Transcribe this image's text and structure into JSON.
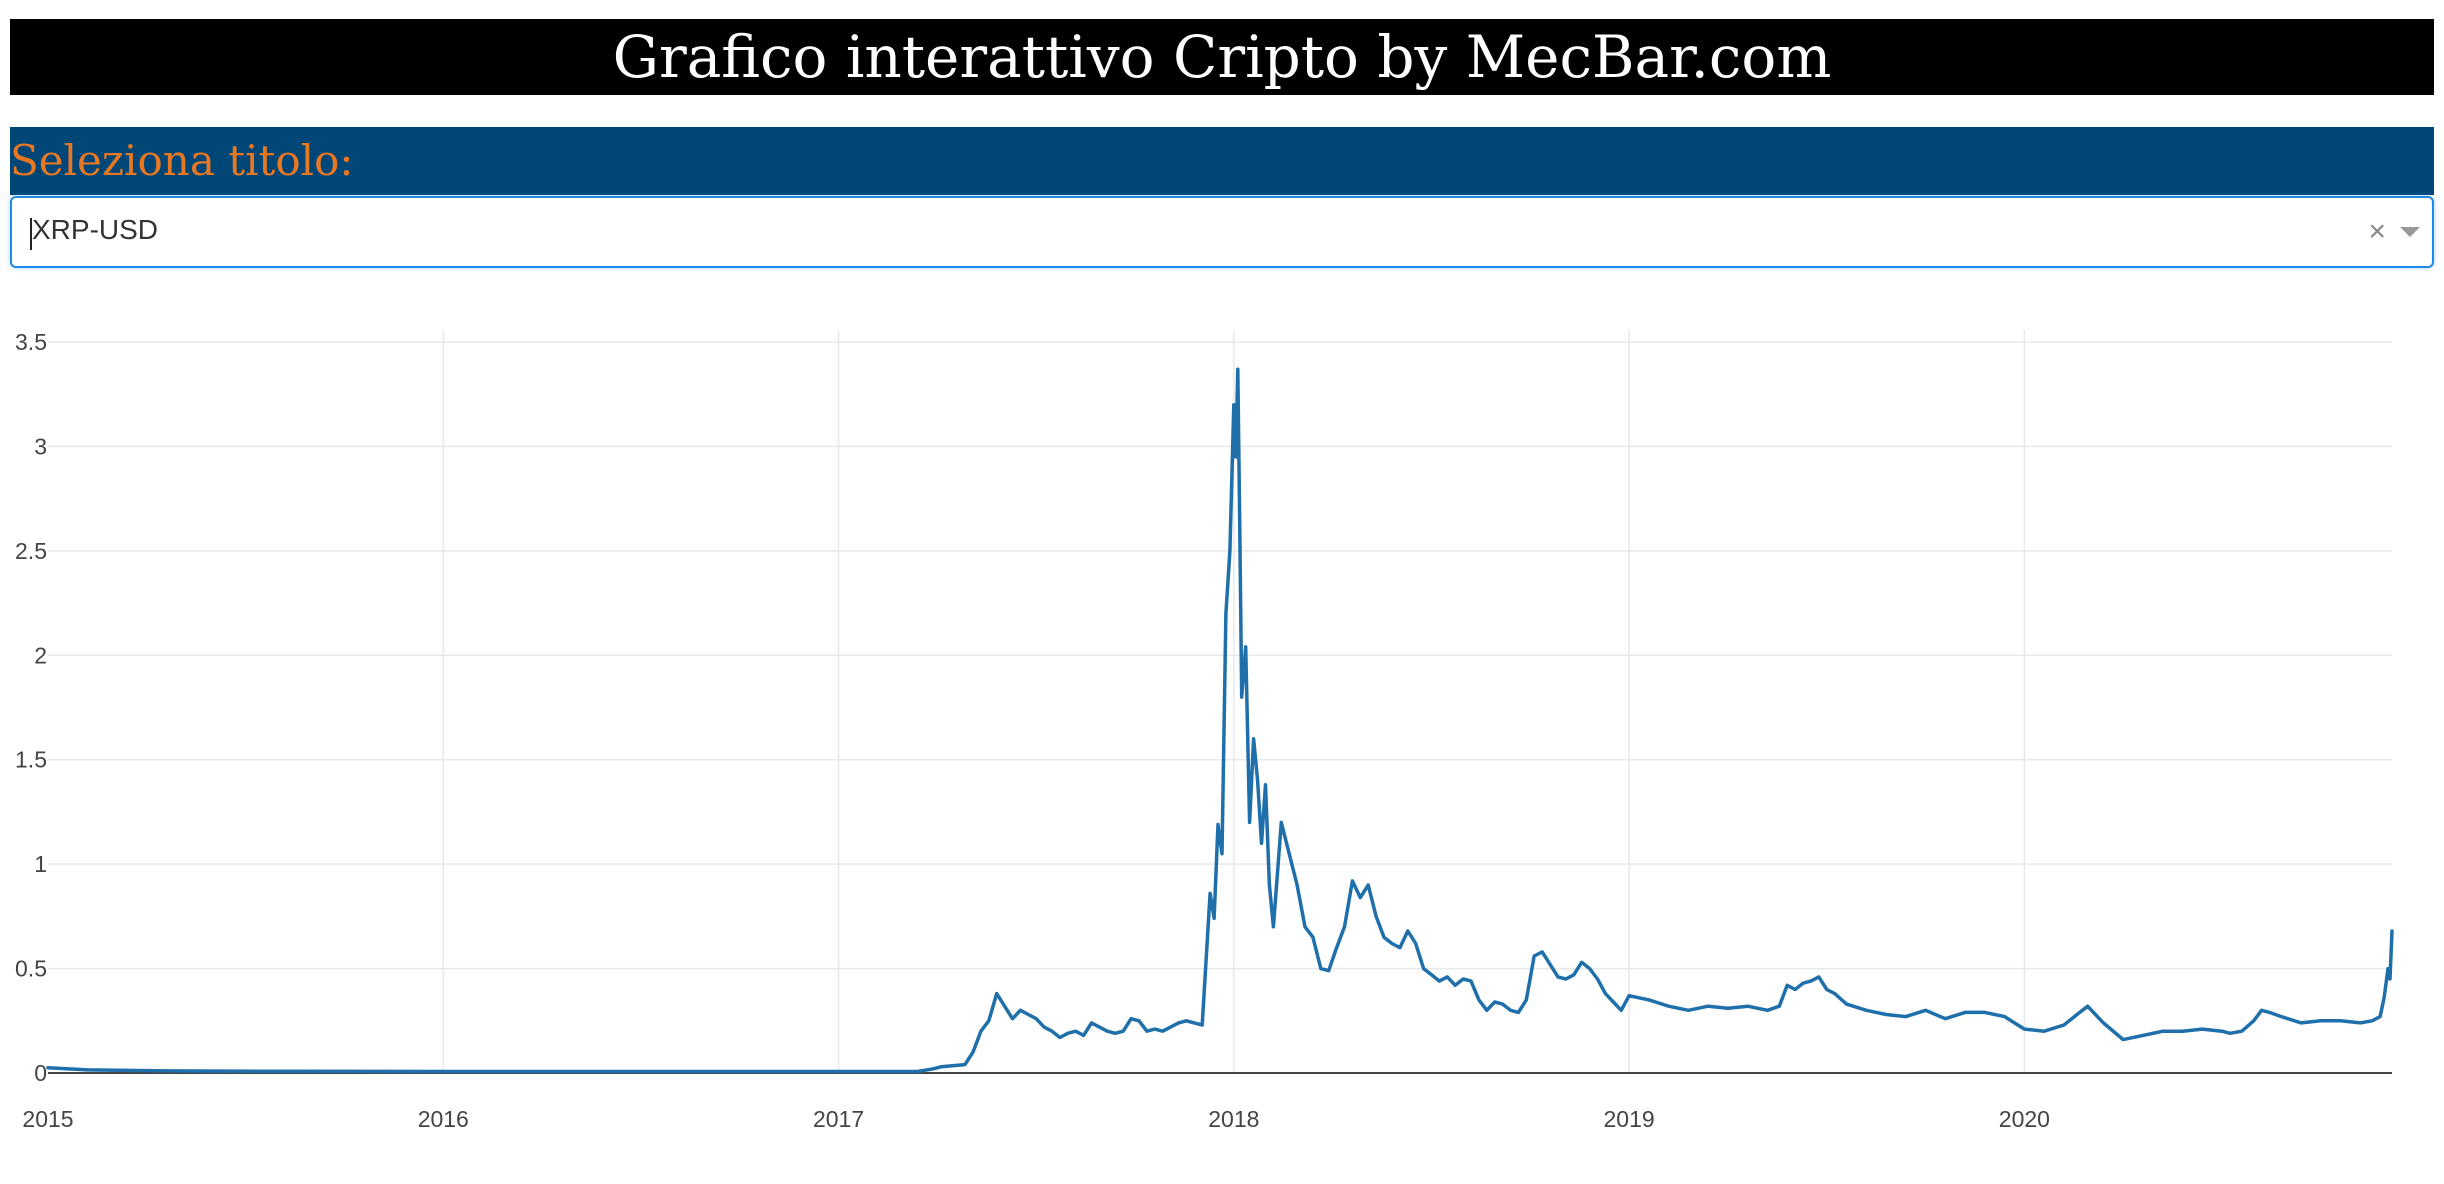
{
  "header": {
    "title": "Grafico interattivo Cripto by MecBar.com"
  },
  "selector": {
    "label": "Seleziona titolo:",
    "value": "XRP-USD",
    "clear_glyph": "×",
    "clear_icon": "close-icon",
    "arrow_icon": "chevron-down-icon"
  },
  "colors": {
    "title_bg": "#000000",
    "title_text": "#ffffff",
    "label_bg": "#004777",
    "label_text": "#e87722",
    "select_border": "#1e88e5",
    "line": "#1f6fab",
    "grid": "#e8e8e8",
    "zero_line": "#444444"
  },
  "chart_data": {
    "type": "line",
    "title": "",
    "xlabel": "",
    "ylabel": "",
    "series": [
      {
        "name": "XRP-USD",
        "x": [
          2015.0,
          2015.1,
          2015.3,
          2015.6,
          2016.0,
          2016.5,
          2017.0,
          2017.2,
          2017.24,
          2017.26,
          2017.32,
          2017.34,
          2017.36,
          2017.38,
          2017.4,
          2017.42,
          2017.44,
          2017.46,
          2017.48,
          2017.5,
          2017.52,
          2017.54,
          2017.56,
          2017.58,
          2017.6,
          2017.62,
          2017.64,
          2017.66,
          2017.68,
          2017.7,
          2017.72,
          2017.74,
          2017.76,
          2017.78,
          2017.8,
          2017.82,
          2017.84,
          2017.86,
          2017.88,
          2017.9,
          2017.92,
          2017.94,
          2017.95,
          2017.96,
          2017.97,
          2017.98,
          2017.99,
          2018.0,
          2018.005,
          2018.01,
          2018.015,
          2018.02,
          2018.03,
          2018.04,
          2018.05,
          2018.06,
          2018.07,
          2018.08,
          2018.09,
          2018.1,
          2018.12,
          2018.14,
          2018.16,
          2018.18,
          2018.2,
          2018.22,
          2018.24,
          2018.26,
          2018.28,
          2018.3,
          2018.32,
          2018.34,
          2018.36,
          2018.38,
          2018.4,
          2018.42,
          2018.44,
          2018.46,
          2018.48,
          2018.5,
          2018.52,
          2018.54,
          2018.56,
          2018.58,
          2018.6,
          2018.62,
          2018.64,
          2018.66,
          2018.68,
          2018.7,
          2018.72,
          2018.74,
          2018.76,
          2018.78,
          2018.8,
          2018.82,
          2018.84,
          2018.86,
          2018.88,
          2018.9,
          2018.92,
          2018.94,
          2018.96,
          2018.98,
          2019.0,
          2019.05,
          2019.1,
          2019.15,
          2019.2,
          2019.25,
          2019.3,
          2019.35,
          2019.38,
          2019.4,
          2019.42,
          2019.44,
          2019.46,
          2019.48,
          2019.5,
          2019.52,
          2019.55,
          2019.6,
          2019.65,
          2019.7,
          2019.75,
          2019.8,
          2019.85,
          2019.9,
          2019.95,
          2020.0,
          2020.05,
          2020.1,
          2020.12,
          2020.14,
          2020.16,
          2020.2,
          2020.25,
          2020.3,
          2020.35,
          2020.4,
          2020.45,
          2020.5,
          2020.52,
          2020.55,
          2020.58,
          2020.6,
          2020.62,
          2020.65,
          2020.7,
          2020.75,
          2020.8,
          2020.85,
          2020.88,
          2020.9,
          2020.91,
          2020.92,
          2020.925,
          2020.93
        ],
        "y": [
          0.025,
          0.015,
          0.01,
          0.008,
          0.007,
          0.007,
          0.007,
          0.007,
          0.02,
          0.03,
          0.04,
          0.1,
          0.2,
          0.25,
          0.38,
          0.32,
          0.26,
          0.3,
          0.28,
          0.26,
          0.22,
          0.2,
          0.17,
          0.19,
          0.2,
          0.18,
          0.24,
          0.22,
          0.2,
          0.19,
          0.2,
          0.26,
          0.25,
          0.2,
          0.21,
          0.2,
          0.22,
          0.24,
          0.25,
          0.24,
          0.23,
          0.86,
          0.74,
          1.19,
          1.05,
          2.2,
          2.5,
          3.2,
          2.95,
          3.37,
          2.6,
          1.8,
          2.04,
          1.2,
          1.6,
          1.4,
          1.1,
          1.38,
          0.9,
          0.7,
          1.2,
          1.05,
          0.9,
          0.7,
          0.65,
          0.5,
          0.49,
          0.6,
          0.7,
          0.92,
          0.84,
          0.9,
          0.75,
          0.65,
          0.62,
          0.6,
          0.68,
          0.62,
          0.5,
          0.47,
          0.44,
          0.46,
          0.42,
          0.45,
          0.44,
          0.35,
          0.3,
          0.34,
          0.33,
          0.3,
          0.29,
          0.35,
          0.56,
          0.58,
          0.52,
          0.46,
          0.45,
          0.47,
          0.53,
          0.5,
          0.45,
          0.38,
          0.34,
          0.3,
          0.37,
          0.35,
          0.32,
          0.3,
          0.32,
          0.31,
          0.32,
          0.3,
          0.32,
          0.42,
          0.4,
          0.43,
          0.44,
          0.46,
          0.4,
          0.38,
          0.33,
          0.3,
          0.28,
          0.27,
          0.3,
          0.26,
          0.29,
          0.29,
          0.27,
          0.21,
          0.2,
          0.23,
          0.26,
          0.29,
          0.32,
          0.24,
          0.16,
          0.18,
          0.2,
          0.2,
          0.21,
          0.2,
          0.19,
          0.2,
          0.25,
          0.3,
          0.29,
          0.27,
          0.24,
          0.25,
          0.25,
          0.24,
          0.25,
          0.27,
          0.36,
          0.5,
          0.45,
          0.68
        ]
      }
    ],
    "xlim": [
      2015.0,
      2020.93
    ],
    "ylim": [
      0,
      3.5
    ],
    "x_ticks": [
      2015,
      2016,
      2017,
      2018,
      2019,
      2020
    ],
    "x_tick_labels": [
      "2015",
      "2016",
      "2017",
      "2018",
      "2019",
      "2020"
    ],
    "y_ticks": [
      0,
      0.5,
      1,
      1.5,
      2,
      2.5,
      3,
      3.5
    ],
    "y_tick_labels": [
      "0",
      "0.5",
      "1",
      "1.5",
      "2",
      "2.5",
      "3",
      "3.5"
    ],
    "grid": true,
    "legend": "none"
  }
}
